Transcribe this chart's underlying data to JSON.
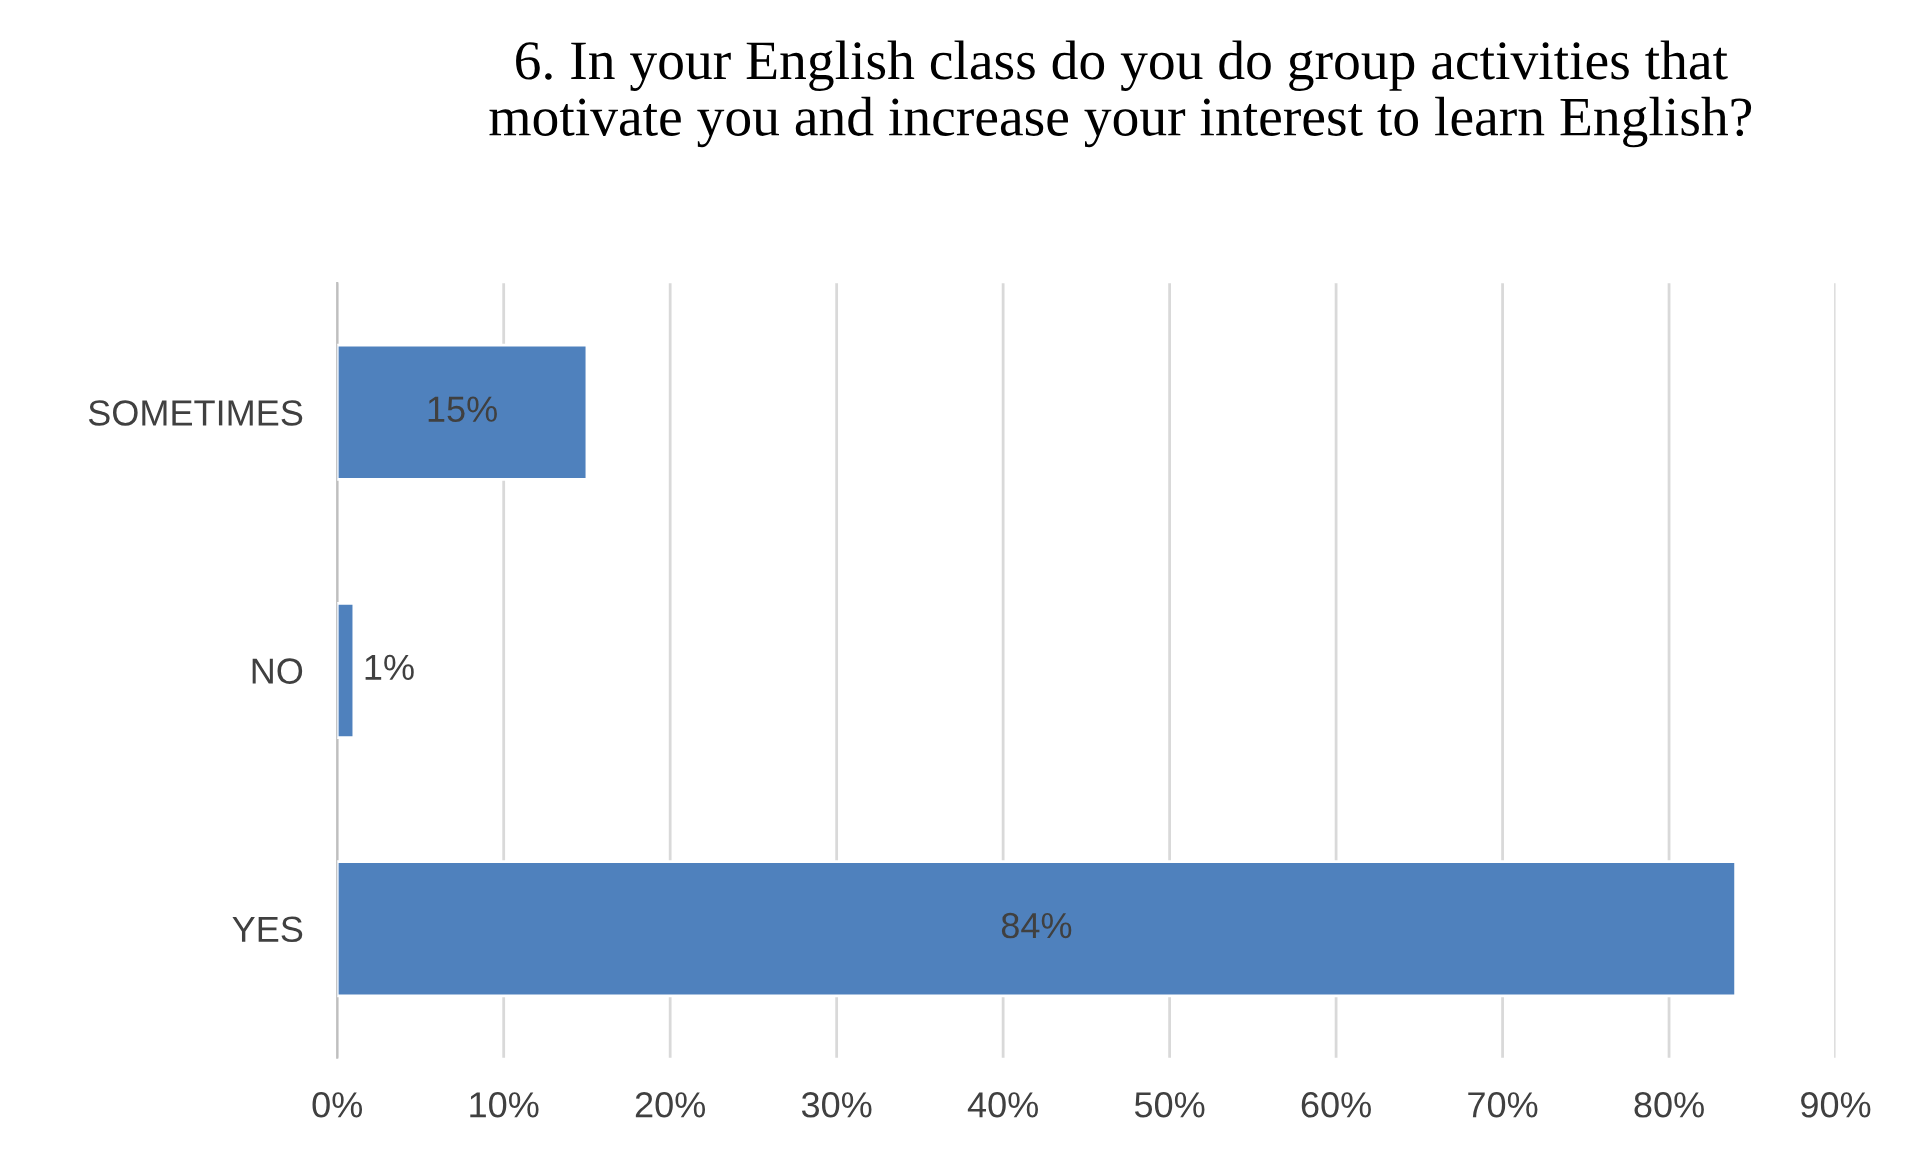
{
  "chart_data": {
    "type": "bar",
    "orientation": "horizontal",
    "title": "6. In your English class do you do group activities that\nmotivate you and increase your interest to learn English?",
    "categories": [
      "SOMETIMES",
      "NO",
      "YES"
    ],
    "values": [
      15,
      1,
      84
    ],
    "color": "#4f81bd",
    "value_labels": [
      "15%",
      "1%",
      "84%"
    ],
    "xlim": [
      0,
      90
    ],
    "xticks": [
      {
        "value": 0,
        "label": "0%"
      },
      {
        "value": 10,
        "label": "10%"
      },
      {
        "value": 20,
        "label": "20%"
      },
      {
        "value": 30,
        "label": "30%"
      },
      {
        "value": 40,
        "label": "40%"
      },
      {
        "value": 50,
        "label": "50%"
      },
      {
        "value": 60,
        "label": "60%"
      },
      {
        "value": 70,
        "label": "70%"
      },
      {
        "value": 80,
        "label": "80%"
      },
      {
        "value": 90,
        "label": "90%"
      }
    ],
    "grid": "x"
  }
}
